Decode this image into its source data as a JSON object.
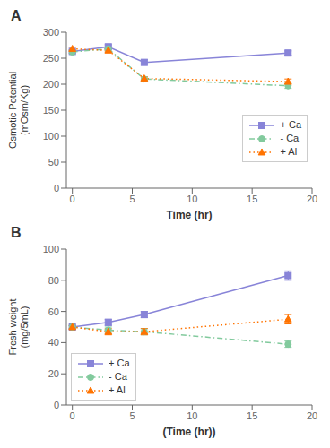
{
  "chart_data": [
    {
      "type": "line",
      "title": "A",
      "xlabel": "Time (hr)",
      "ylabel": "Osmotic Potential\n(mOsm/Kg)",
      "x": [
        0,
        3,
        6,
        18
      ],
      "xlim": [
        -0.5,
        20
      ],
      "xticks": [
        0,
        5,
        10,
        15,
        20
      ],
      "ylim": [
        0,
        300
      ],
      "yticks": [
        0,
        50,
        100,
        150,
        200,
        250,
        300
      ],
      "grid": false,
      "legend": "center right",
      "series": [
        {
          "name": "+ Ca",
          "values": [
            263,
            272,
            242,
            260
          ],
          "errors": [
            3,
            4,
            5,
            4
          ],
          "line_style": "solid",
          "marker": "square"
        },
        {
          "name": "- Ca",
          "values": [
            262,
            268,
            210,
            197
          ],
          "errors": [
            3,
            4,
            4,
            5
          ],
          "line_style": "dashdot",
          "marker": "circle"
        },
        {
          "name": "+ Al",
          "values": [
            268,
            265,
            211,
            205
          ],
          "errors": [
            3,
            3,
            3,
            5
          ],
          "line_style": "dotted",
          "marker": "triangle"
        }
      ]
    },
    {
      "type": "line",
      "title": "B",
      "xlabel": "(Time (hr))",
      "ylabel": "Fresh weight\n(mg/5mL)",
      "x": [
        0,
        3,
        6,
        18
      ],
      "xlim": [
        -0.5,
        20
      ],
      "xticks": [
        0,
        5,
        10,
        15,
        20
      ],
      "ylim": [
        0,
        100
      ],
      "yticks": [
        0,
        20,
        40,
        60,
        80,
        100
      ],
      "grid": false,
      "legend": "lower left",
      "series": [
        {
          "name": "+ Ca",
          "values": [
            50,
            53,
            58,
            83
          ],
          "errors": [
            1,
            2,
            2,
            3
          ],
          "line_style": "solid",
          "marker": "square"
        },
        {
          "name": "- Ca",
          "values": [
            50,
            48,
            47,
            39
          ],
          "errors": [
            1,
            2,
            2,
            2
          ],
          "line_style": "dashdot",
          "marker": "circle"
        },
        {
          "name": "+ Al",
          "values": [
            50,
            47,
            47,
            55
          ],
          "errors": [
            1,
            2,
            2,
            3
          ],
          "line_style": "dotted",
          "marker": "triangle"
        }
      ]
    }
  ]
}
